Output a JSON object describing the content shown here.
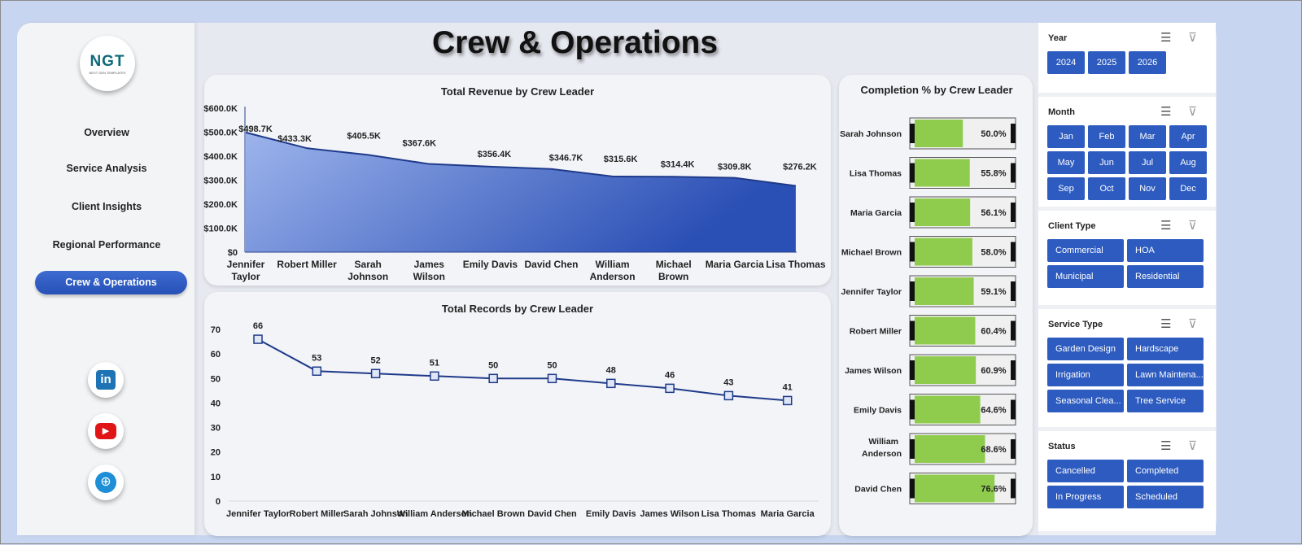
{
  "title": "Crew & Operations",
  "logo": {
    "text": "NGT",
    "subtext": "NEXT GEN TEMPLATES"
  },
  "nav": [
    {
      "label": "Overview"
    },
    {
      "label": "Service Analysis"
    },
    {
      "label": "Client Insights"
    },
    {
      "label": "Regional Performance"
    },
    {
      "label": "Crew & Operations",
      "active": true
    }
  ],
  "social": [
    "linkedin-icon",
    "youtube-icon",
    "globe-icon"
  ],
  "colors": {
    "accent": "#2d5bbf",
    "area": "#3557c4",
    "bar_fill": "#8fcc4e"
  },
  "chart_data": [
    {
      "type": "area",
      "title": "Total Revenue by Crew Leader",
      "categories": [
        "Jennifer Taylor",
        "Robert Miller",
        "Sarah Johnson",
        "James Wilson",
        "Emily Davis",
        "David Chen",
        "William Anderson",
        "Michael Brown",
        "Maria Garcia",
        "Lisa Thomas"
      ],
      "values": [
        498.7,
        433.3,
        405.5,
        367.6,
        356.4,
        346.7,
        315.6,
        314.4,
        309.8,
        276.2
      ],
      "labels": [
        "$498.7K",
        "$433.3K",
        "$405.5K",
        "$367.6K",
        "$356.4K",
        "$346.7K",
        "$315.6K",
        "$314.4K",
        "$309.8K",
        "$276.2K"
      ],
      "yticks": [
        "$0",
        "$100.0K",
        "$200.0K",
        "$300.0K",
        "$400.0K",
        "$500.0K",
        "$600.0K"
      ],
      "ylim": [
        0,
        600
      ]
    },
    {
      "type": "line",
      "title": "Total Records by Crew Leader",
      "categories": [
        "Jennifer Taylor",
        "Robert Miller",
        "Sarah Johnson",
        "William Anderson",
        "Michael Brown",
        "David Chen",
        "Emily Davis",
        "James Wilson",
        "Lisa Thomas",
        "Maria Garcia"
      ],
      "values": [
        66,
        53,
        52,
        51,
        50,
        50,
        48,
        46,
        43,
        41
      ],
      "yticks": [
        "0",
        "10",
        "20",
        "30",
        "40",
        "50",
        "60",
        "70"
      ],
      "ylim": [
        0,
        70
      ]
    },
    {
      "type": "bar",
      "title": "Completion % by Crew Leader",
      "categories": [
        "Sarah Johnson",
        "Lisa Thomas",
        "Maria Garcia",
        "Michael Brown",
        "Jennifer Taylor",
        "Robert Miller",
        "James Wilson",
        "Emily Davis",
        "William Anderson",
        "David Chen"
      ],
      "values": [
        50.0,
        55.8,
        56.1,
        58.0,
        59.1,
        60.4,
        60.9,
        64.6,
        68.6,
        76.6
      ],
      "labels": [
        "50.0%",
        "55.8%",
        "56.1%",
        "58.0%",
        "59.1%",
        "60.4%",
        "60.9%",
        "64.6%",
        "68.6%",
        "76.6%"
      ]
    }
  ],
  "slicers": [
    {
      "title": "Year",
      "items": [
        "2024",
        "2025",
        "2026"
      ]
    },
    {
      "title": "Month",
      "items": [
        "Jan",
        "Feb",
        "Mar",
        "Apr",
        "May",
        "Jun",
        "Jul",
        "Aug",
        "Sep",
        "Oct",
        "Nov",
        "Dec"
      ]
    },
    {
      "title": "Client Type",
      "items": [
        "Commercial",
        "HOA",
        "Municipal",
        "Residential"
      ]
    },
    {
      "title": "Service Type",
      "items": [
        "Garden Design",
        "Hardscape",
        "Irrigation",
        "Lawn Maintena...",
        "Seasonal Clea...",
        "Tree Service"
      ]
    },
    {
      "title": "Status",
      "items": [
        "Cancelled",
        "Completed",
        "In Progress",
        "Scheduled"
      ]
    }
  ]
}
